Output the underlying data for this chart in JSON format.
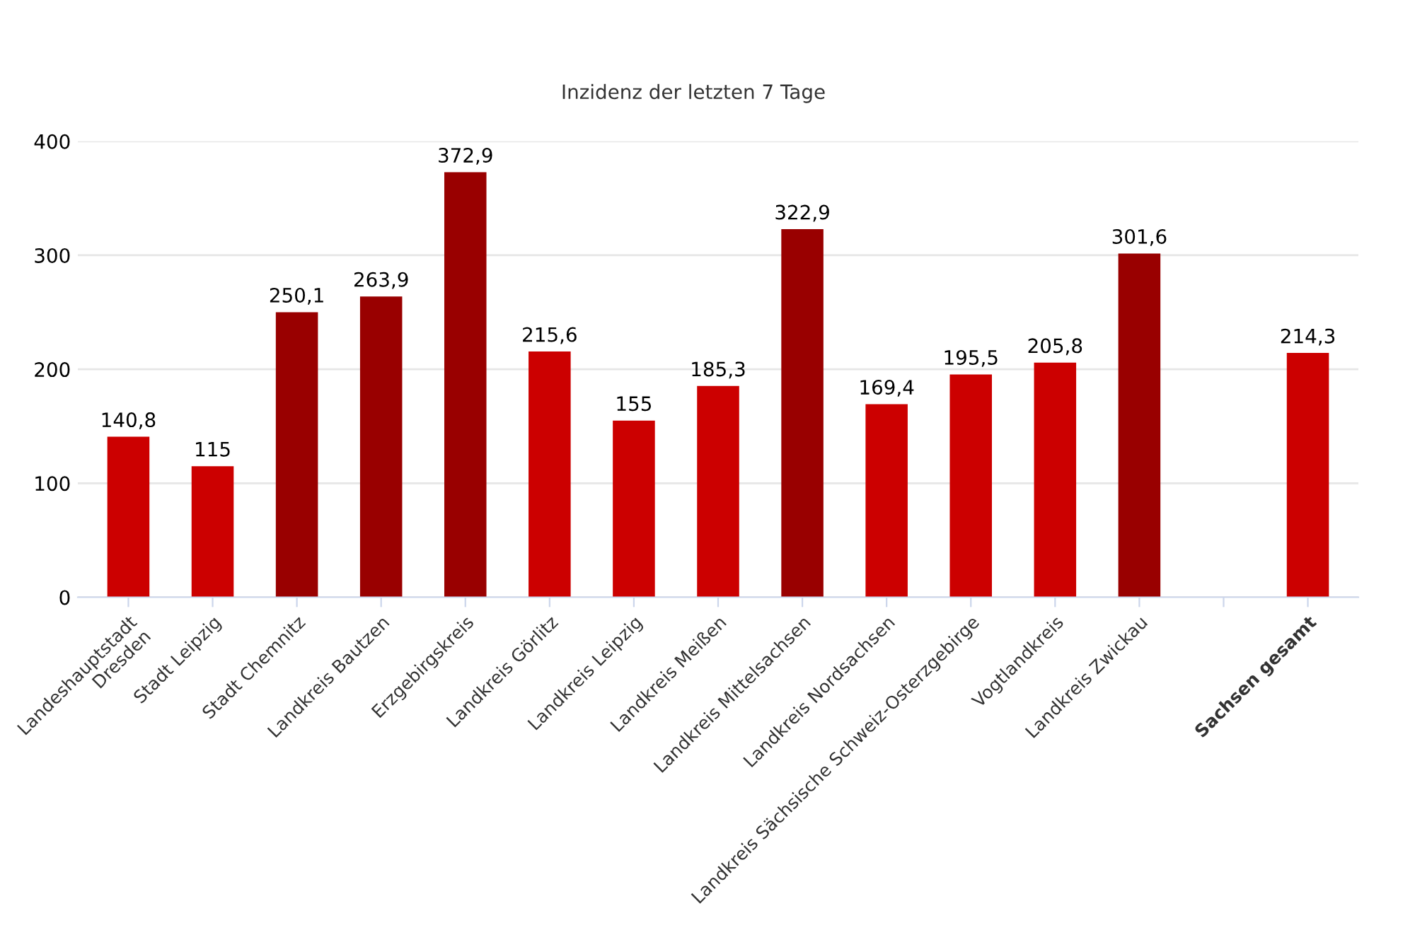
{
  "chart_data": {
    "type": "bar",
    "title": "Inzidenz der letzten 7 Tage",
    "categories": [
      "Landeshauptstadt\nDresden",
      "Stadt Leipzig",
      "Stadt Chemnitz",
      "Landkreis Bautzen",
      "Erzgebirgskreis",
      "Landkreis Görlitz",
      "Landkreis Leipzig",
      "Landkreis Meißen",
      "Landkreis Mittelsachsen",
      "Landkreis Nordsachsen",
      "Landkreis Sächsische Schweiz-Osterzgebirge",
      "Vogtlandkreis",
      "Landkreis Zwickau",
      null,
      "Sachsen gesamt"
    ],
    "values": [
      140.8,
      115,
      250.1,
      263.9,
      372.9,
      215.6,
      155,
      185.3,
      322.9,
      169.4,
      195.5,
      205.8,
      301.6,
      null,
      214.3
    ],
    "value_labels": [
      "140,8",
      "115",
      "250,1",
      "263,9",
      "372,9",
      "215,6",
      "155",
      "185,3",
      "322,9",
      "169,4",
      "195,5",
      "205,8",
      "301,6",
      null,
      "214,3"
    ],
    "colors": [
      "#cc0000",
      "#cc0000",
      "#990000",
      "#990000",
      "#990000",
      "#cc0000",
      "#cc0000",
      "#cc0000",
      "#990000",
      "#cc0000",
      "#cc0000",
      "#cc0000",
      "#990000",
      null,
      "#cc0000"
    ],
    "ylim": [
      0,
      400
    ],
    "yticks": [
      0,
      100,
      200,
      300,
      400
    ],
    "grid": "y",
    "legend": false
  }
}
